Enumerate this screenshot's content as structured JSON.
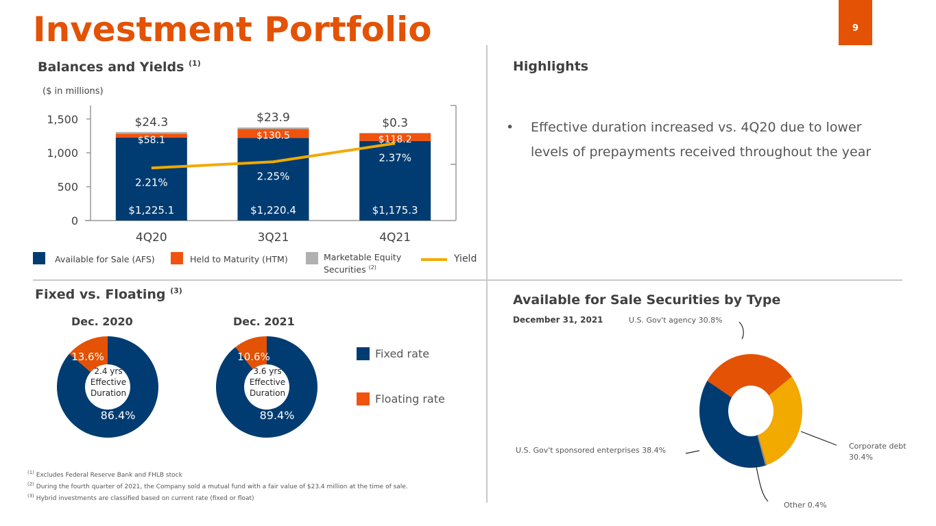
{
  "header": {
    "title": "Investment Portfolio",
    "page_number": "9"
  },
  "balances": {
    "title": "Balances and Yields",
    "title_note": "(1)",
    "units": "($ in millions)",
    "legend": [
      {
        "label": "Available for Sale (AFS)",
        "color": "#003c71"
      },
      {
        "label": "Held to Maturity (HTM)",
        "color": "#f0530e"
      },
      {
        "label": "Marketable Equity Securities",
        "note": "(2)",
        "color": "#b0b0b0"
      },
      {
        "label": "Yield",
        "color": "#f2a900"
      }
    ]
  },
  "highlights": {
    "title": "Highlights",
    "bullets": [
      "Effective duration increased vs. 4Q20 due to lower levels of prepayments received throughout the year"
    ]
  },
  "fixed_floating": {
    "title": "Fixed vs. Floating",
    "title_note": "(3)",
    "charts": [
      {
        "label": "Dec. 2020",
        "fixed": 86.4,
        "floating": 13.6,
        "fixed_label": "86.4%",
        "floating_label": "13.6%",
        "center_lines": [
          "2.4 yrs",
          "Effective",
          "Duration"
        ]
      },
      {
        "label": "Dec. 2021",
        "fixed": 89.4,
        "floating": 10.6,
        "fixed_label": "89.4%",
        "floating_label": "10.6%",
        "center_lines": [
          "3.6 yrs",
          "Effective",
          "Duration"
        ]
      }
    ],
    "legend": [
      {
        "label": "Fixed rate",
        "color": "#003c71"
      },
      {
        "label": "Floating rate",
        "color": "#f0530e"
      }
    ]
  },
  "afs_by_type": {
    "title": "Available for Sale Securities by Type",
    "subtitle": "December 31, 2021"
  },
  "footnotes": [
    {
      "mark": "(1)",
      "text": "Excludes Federal Reserve Bank and FHLB stock"
    },
    {
      "mark": "(2)",
      "text": "During the fourth quarter of 2021, the Company sold a mutual fund with a fair value of $23.4 million at the time of sale."
    },
    {
      "mark": "(3)",
      "text": "Hybrid investments are classified based on current rate (fixed or float)"
    }
  ],
  "chart_data": [
    {
      "type": "bar",
      "stacked": true,
      "title": "Balances and Yields",
      "ylabel": "($ in millions)",
      "categories": [
        "4Q20",
        "3Q21",
        "4Q21"
      ],
      "ylim": [
        0,
        1700
      ],
      "yticks": [
        0,
        500,
        1000,
        1500
      ],
      "ytick_labels": [
        "0",
        "500",
        "1,000",
        "1,500"
      ],
      "series": [
        {
          "name": "Available for Sale (AFS)",
          "color": "#003c71",
          "values": [
            1225.1,
            1220.4,
            1175.3
          ],
          "labels": [
            "$1,225.1",
            "$1,220.4",
            "$1,175.3"
          ]
        },
        {
          "name": "Held to Maturity (HTM)",
          "color": "#f0530e",
          "values": [
            58.1,
            130.5,
            118.2
          ],
          "labels": [
            "$58.1",
            "$130.5",
            "$118.2"
          ]
        },
        {
          "name": "Marketable Equity Securities",
          "color": "#b0b0b0",
          "values": [
            24.3,
            23.9,
            0.3
          ],
          "labels": [
            "$24.3",
            "$23.9",
            "$0.3"
          ]
        }
      ],
      "line_series": {
        "name": "Yield",
        "color": "#f2a900",
        "values": [
          2.21,
          2.25,
          2.37
        ],
        "labels": [
          "2.21%",
          "2.25%",
          "2.37%"
        ],
        "secondary_axis": true
      }
    },
    {
      "type": "pie",
      "donut": true,
      "title": "Dec. 2020",
      "categories": [
        "Fixed rate",
        "Floating rate"
      ],
      "values": [
        86.4,
        13.6
      ]
    },
    {
      "type": "pie",
      "donut": true,
      "title": "Dec. 2021",
      "categories": [
        "Fixed rate",
        "Floating rate"
      ],
      "values": [
        89.4,
        10.6
      ]
    },
    {
      "type": "pie",
      "donut": true,
      "title": "Available for Sale Securities by Type",
      "subtitle": "December 31, 2021",
      "categories": [
        "U.S. Gov't agency",
        "Corporate debt",
        "Other",
        "U.S. Gov't sponsored enterprises"
      ],
      "values": [
        30.8,
        30.4,
        0.4,
        38.4
      ],
      "labels": [
        "U.S. Gov't agency 30.8%",
        "Corporate debt 30.4%",
        "Other 0.4%",
        "U.S. Gov't sponsored enterprises 38.4%"
      ],
      "colors": [
        "#e35205",
        "#f2a900",
        "#8a8a8a",
        "#003c71"
      ]
    }
  ]
}
